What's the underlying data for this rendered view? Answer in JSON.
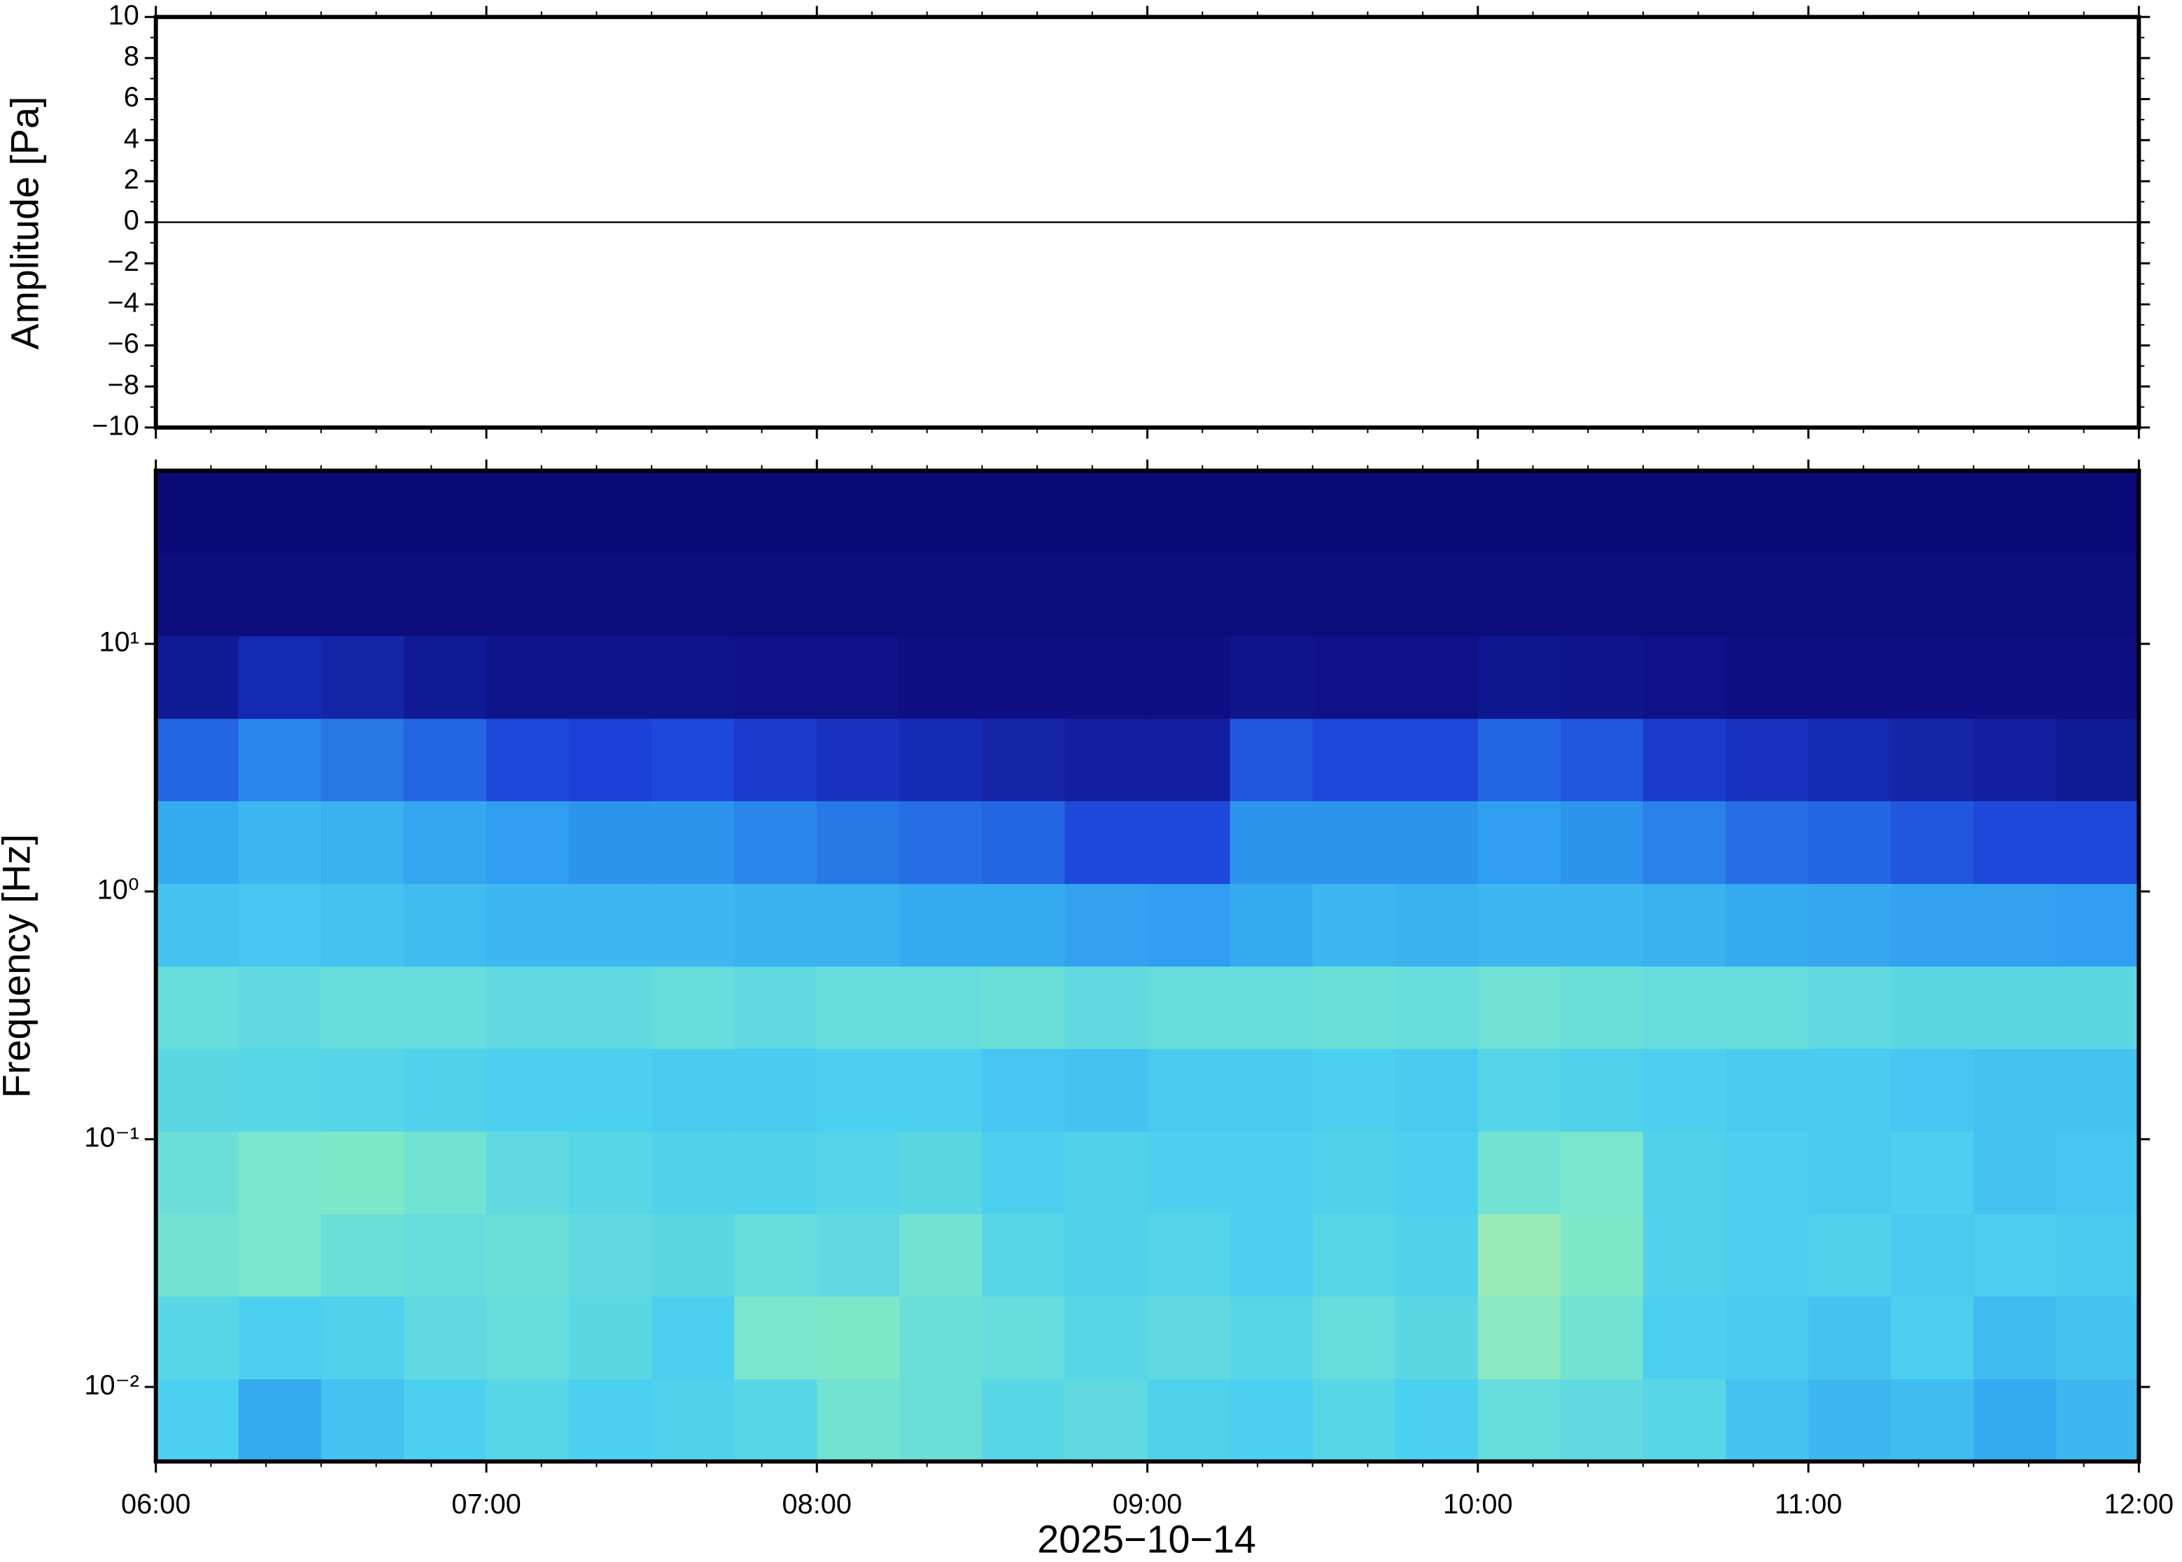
{
  "chart_data": [
    {
      "type": "line",
      "ylabel": "Amplitude [Pa]",
      "x": [
        6,
        12
      ],
      "values": [
        0,
        0
      ],
      "color": "#000000",
      "xlim": [
        6,
        12
      ],
      "xticks": [
        6,
        7,
        8,
        9,
        10,
        11,
        12
      ],
      "ylim": [
        -10,
        10
      ],
      "yticks": [
        {
          "value": -10,
          "label": "−10"
        },
        {
          "value": -8,
          "label": "−8"
        },
        {
          "value": -6,
          "label": "−6"
        },
        {
          "value": -4,
          "label": "−4"
        },
        {
          "value": -2,
          "label": "−2"
        },
        0,
        2,
        4,
        6,
        8,
        10
      ]
    },
    {
      "type": "heatmap",
      "ylabel": "Frequency [Hz]",
      "xlabel": "2025−10−14",
      "log_y": true,
      "xlim": [
        6,
        12
      ],
      "xticks": [
        {
          "value": 6,
          "label": "06:00"
        },
        {
          "value": 7,
          "label": "07:00"
        },
        {
          "value": 8,
          "label": "08:00"
        },
        {
          "value": 9,
          "label": "09:00"
        },
        {
          "value": 10,
          "label": "10:00"
        },
        {
          "value": 11,
          "label": "11:00"
        },
        {
          "value": 12,
          "label": "12:00"
        }
      ],
      "ylim": [
        0.005,
        50
      ],
      "yticks": [
        {
          "value": 0.01,
          "label": "10⁻²"
        },
        {
          "value": 0.1,
          "label": "10⁻¹"
        },
        {
          "value": 1,
          "label": "10⁰"
        },
        {
          "value": 10,
          "label": "10¹"
        }
      ],
      "colorscale": [
        "#0b0a78",
        "#1c3fd8",
        "#2f9df0",
        "#4cd0f0",
        "#7fe8c8",
        "#eef58a"
      ],
      "x_edges": [
        6,
        6.25,
        6.5,
        6.75,
        7,
        7.25,
        7.5,
        7.75,
        8,
        8.25,
        8.5,
        8.75,
        9,
        9.25,
        9.5,
        9.75,
        10,
        10.25,
        10.5,
        10.75,
        11,
        11.25,
        11.5,
        11.75,
        12
      ],
      "y_edges": [
        0.005,
        0.0108,
        0.0233,
        0.0501,
        0.108,
        0.233,
        0.501,
        1.08,
        2.33,
        5.01,
        10.8,
        23.3,
        50
      ],
      "values": [
        [
          0.6,
          0.45,
          0.55,
          0.6,
          0.65,
          0.6,
          0.62,
          0.65,
          0.75,
          0.72,
          0.65,
          0.68,
          0.62,
          0.6,
          0.65,
          0.6,
          0.7,
          0.68,
          0.65,
          0.55,
          0.5,
          0.52,
          0.45,
          0.5
        ],
        [
          0.65,
          0.6,
          0.62,
          0.68,
          0.7,
          0.66,
          0.6,
          0.78,
          0.8,
          0.72,
          0.7,
          0.65,
          0.68,
          0.65,
          0.7,
          0.66,
          0.82,
          0.75,
          0.6,
          0.58,
          0.55,
          0.6,
          0.52,
          0.55
        ],
        [
          0.75,
          0.78,
          0.72,
          0.7,
          0.72,
          0.68,
          0.66,
          0.7,
          0.68,
          0.75,
          0.65,
          0.62,
          0.64,
          0.6,
          0.65,
          0.62,
          0.85,
          0.8,
          0.62,
          0.6,
          0.62,
          0.58,
          0.6,
          0.58
        ],
        [
          0.72,
          0.78,
          0.8,
          0.75,
          0.68,
          0.65,
          0.62,
          0.62,
          0.64,
          0.66,
          0.6,
          0.62,
          0.6,
          0.6,
          0.62,
          0.6,
          0.75,
          0.78,
          0.62,
          0.6,
          0.58,
          0.6,
          0.55,
          0.56
        ],
        [
          0.66,
          0.65,
          0.64,
          0.62,
          0.6,
          0.6,
          0.58,
          0.58,
          0.6,
          0.6,
          0.56,
          0.55,
          0.58,
          0.58,
          0.6,
          0.58,
          0.64,
          0.62,
          0.6,
          0.58,
          0.58,
          0.56,
          0.55,
          0.55
        ],
        [
          0.7,
          0.68,
          0.7,
          0.7,
          0.68,
          0.68,
          0.7,
          0.68,
          0.7,
          0.7,
          0.72,
          0.68,
          0.7,
          0.7,
          0.72,
          0.7,
          0.74,
          0.72,
          0.7,
          0.7,
          0.68,
          0.66,
          0.66,
          0.66
        ],
        [
          0.55,
          0.56,
          0.55,
          0.52,
          0.5,
          0.5,
          0.5,
          0.48,
          0.48,
          0.45,
          0.45,
          0.42,
          0.4,
          0.45,
          0.5,
          0.48,
          0.5,
          0.5,
          0.48,
          0.45,
          0.44,
          0.42,
          0.42,
          0.4
        ],
        [
          0.45,
          0.5,
          0.48,
          0.44,
          0.4,
          0.38,
          0.38,
          0.35,
          0.32,
          0.3,
          0.28,
          0.22,
          0.22,
          0.38,
          0.38,
          0.38,
          0.4,
          0.38,
          0.34,
          0.3,
          0.28,
          0.25,
          0.22,
          0.22
        ],
        [
          0.28,
          0.35,
          0.32,
          0.28,
          0.22,
          0.2,
          0.22,
          0.18,
          0.15,
          0.12,
          0.1,
          0.08,
          0.08,
          0.25,
          0.22,
          0.22,
          0.28,
          0.25,
          0.18,
          0.15,
          0.12,
          0.1,
          0.08,
          0.06
        ],
        [
          0.06,
          0.12,
          0.1,
          0.06,
          0.04,
          0.04,
          0.04,
          0.03,
          0.03,
          0.02,
          0.02,
          0.02,
          0.02,
          0.04,
          0.03,
          0.03,
          0.05,
          0.04,
          0.03,
          0.02,
          0.02,
          0.02,
          0.02,
          0.02
        ],
        [
          0.01,
          0.01,
          0.01,
          0.01,
          0.01,
          0.01,
          0.01,
          0.01,
          0.01,
          0.01,
          0.01,
          0.01,
          0.01,
          0.01,
          0.01,
          0.01,
          0.01,
          0.01,
          0.01,
          0.01,
          0.01,
          0.01,
          0.01,
          0.01
        ],
        [
          0,
          0,
          0,
          0,
          0,
          0,
          0,
          0,
          0,
          0,
          0,
          0,
          0,
          0,
          0,
          0,
          0,
          0,
          0,
          0,
          0,
          0,
          0,
          0
        ]
      ]
    }
  ]
}
